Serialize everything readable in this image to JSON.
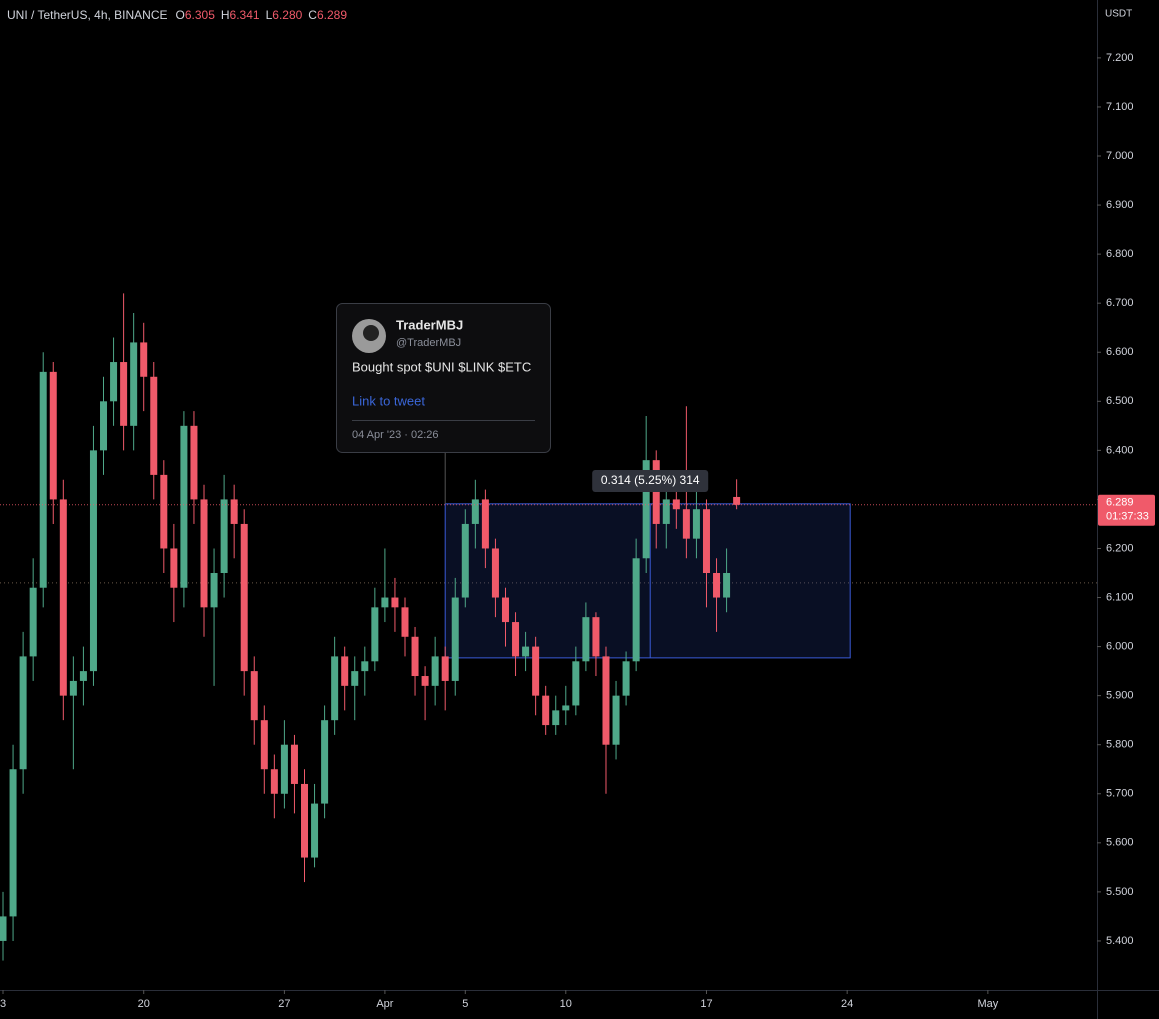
{
  "chart_data": {
    "type": "candlestick",
    "title": "UNI / TetherUS, 4h, BINANCE",
    "ohlc_keys": [
      "O",
      "H",
      "L",
      "C"
    ],
    "ohlc_labels": [
      "6.305",
      "6.341",
      "6.280",
      "6.289"
    ],
    "axis_unit": "USDT",
    "up_color": "#4fa889",
    "down_color": "#f05a6a",
    "xlim": [
      -0.15,
      54.43
    ],
    "xticks": [
      {
        "value": 0,
        "label": "3"
      },
      {
        "value": 7,
        "label": "20"
      },
      {
        "value": 14,
        "label": "27"
      },
      {
        "value": 19,
        "label": "Apr"
      },
      {
        "value": 23,
        "label": "5"
      },
      {
        "value": 28,
        "label": "10"
      },
      {
        "value": 35,
        "label": "17"
      },
      {
        "value": 42,
        "label": "24"
      },
      {
        "value": 49,
        "label": "May"
      }
    ],
    "ylim": [
      5.3,
      7.318
    ],
    "yticks": [
      {
        "value": 5.4,
        "label": "5.400"
      },
      {
        "value": 5.5,
        "label": "5.500"
      },
      {
        "value": 5.6,
        "label": "5.600"
      },
      {
        "value": 5.7,
        "label": "5.700"
      },
      {
        "value": 5.8,
        "label": "5.800"
      },
      {
        "value": 5.9,
        "label": "5.900"
      },
      {
        "value": 6.0,
        "label": "6.000"
      },
      {
        "value": 6.1,
        "label": "6.100"
      },
      {
        "value": 6.2,
        "label": "6.200"
      },
      {
        "value": 6.3,
        "label": "6.300"
      },
      {
        "value": 6.4,
        "label": "6.400"
      },
      {
        "value": 6.5,
        "label": "6.500"
      },
      {
        "value": 6.6,
        "label": "6.600"
      },
      {
        "value": 6.7,
        "label": "6.700"
      },
      {
        "value": 6.8,
        "label": "6.800"
      },
      {
        "value": 6.9,
        "label": "6.900"
      },
      {
        "value": 7.0,
        "label": "7.000"
      },
      {
        "value": 7.1,
        "label": "7.100"
      },
      {
        "value": 7.2,
        "label": "7.200"
      }
    ],
    "x": [
      0,
      0.5,
      1,
      1.5,
      2,
      2.5,
      3,
      3.5,
      4,
      4.5,
      5,
      5.5,
      6,
      6.5,
      7,
      7.5,
      8,
      8.5,
      9,
      9.5,
      10,
      10.5,
      11,
      11.5,
      12,
      12.5,
      13,
      13.5,
      14,
      14.5,
      15,
      15.5,
      16,
      16.5,
      17,
      17.5,
      18,
      18.5,
      19,
      19.5,
      20,
      20.5,
      21,
      21.5,
      22,
      22.5,
      23,
      23.5,
      24,
      24.5,
      25,
      25.5,
      26,
      26.5,
      27,
      27.5,
      28,
      28.5,
      29,
      29.5,
      30,
      30.5,
      31,
      31.5,
      32,
      32.5,
      33,
      33.5,
      34,
      34.5,
      35,
      35.5,
      36,
      36.5
    ],
    "open": [
      5.4,
      5.45,
      5.75,
      5.98,
      6.12,
      6.56,
      6.3,
      5.9,
      5.93,
      5.95,
      6.4,
      6.5,
      6.58,
      6.45,
      6.62,
      6.55,
      6.35,
      6.2,
      6.12,
      6.45,
      6.3,
      6.08,
      6.15,
      6.3,
      6.25,
      5.95,
      5.85,
      5.75,
      5.7,
      5.8,
      5.72,
      5.57,
      5.68,
      5.85,
      5.98,
      5.92,
      5.95,
      5.97,
      6.08,
      6.1,
      6.08,
      6.02,
      5.94,
      5.92,
      5.98,
      5.93,
      6.1,
      6.25,
      6.3,
      6.2,
      6.1,
      6.05,
      5.98,
      6.0,
      5.9,
      5.84,
      5.87,
      5.88,
      5.97,
      6.06,
      5.98,
      5.8,
      5.9,
      5.97,
      6.18,
      6.38,
      6.25,
      6.3,
      6.28,
      6.22,
      6.28,
      6.15,
      6.1,
      6.305
    ],
    "high": [
      5.5,
      5.8,
      6.03,
      6.18,
      6.6,
      6.58,
      6.34,
      5.98,
      6.0,
      6.45,
      6.55,
      6.63,
      6.72,
      6.68,
      6.66,
      6.58,
      6.38,
      6.25,
      6.48,
      6.48,
      6.33,
      6.2,
      6.35,
      6.33,
      6.28,
      5.98,
      5.88,
      5.78,
      5.85,
      5.82,
      5.75,
      5.72,
      5.88,
      6.02,
      6.0,
      5.98,
      6.0,
      6.12,
      6.2,
      6.14,
      6.1,
      6.04,
      5.96,
      6.02,
      6.0,
      6.14,
      6.28,
      6.34,
      6.32,
      6.22,
      6.12,
      6.07,
      6.03,
      6.02,
      5.92,
      5.9,
      5.92,
      6.0,
      6.09,
      6.07,
      6.0,
      5.93,
      5.99,
      6.22,
      6.47,
      6.4,
      6.33,
      6.35,
      6.49,
      6.32,
      6.3,
      6.18,
      6.2,
      6.341
    ],
    "low": [
      5.36,
      5.4,
      5.7,
      5.93,
      6.08,
      6.25,
      5.85,
      5.75,
      5.88,
      5.92,
      6.35,
      6.45,
      6.4,
      6.4,
      6.48,
      6.3,
      6.15,
      6.05,
      6.08,
      6.25,
      6.02,
      5.92,
      6.1,
      6.18,
      5.9,
      5.8,
      5.7,
      5.65,
      5.67,
      5.66,
      5.52,
      5.55,
      5.65,
      5.82,
      5.87,
      5.85,
      5.9,
      5.95,
      6.05,
      6.03,
      5.98,
      5.9,
      5.85,
      5.88,
      5.87,
      5.9,
      6.08,
      6.2,
      6.16,
      6.06,
      6.0,
      5.94,
      5.95,
      5.86,
      5.82,
      5.82,
      5.84,
      5.86,
      5.95,
      5.94,
      5.7,
      5.77,
      5.88,
      5.95,
      6.15,
      6.2,
      6.2,
      6.24,
      6.18,
      6.18,
      6.08,
      6.03,
      6.07,
      6.28
    ],
    "close": [
      5.45,
      5.75,
      5.98,
      6.12,
      6.56,
      6.3,
      5.9,
      5.93,
      5.95,
      6.4,
      6.5,
      6.58,
      6.45,
      6.62,
      6.55,
      6.35,
      6.2,
      6.12,
      6.45,
      6.3,
      6.08,
      6.15,
      6.3,
      6.25,
      5.95,
      5.85,
      5.75,
      5.7,
      5.8,
      5.72,
      5.57,
      5.68,
      5.85,
      5.98,
      5.92,
      5.95,
      5.97,
      6.08,
      6.1,
      6.08,
      6.02,
      5.94,
      5.92,
      5.98,
      5.93,
      6.1,
      6.25,
      6.3,
      6.2,
      6.1,
      6.05,
      5.98,
      6.0,
      5.9,
      5.84,
      5.87,
      5.88,
      5.97,
      6.06,
      5.98,
      5.8,
      5.9,
      5.97,
      6.18,
      6.38,
      6.25,
      6.3,
      6.28,
      6.22,
      6.28,
      6.15,
      6.1,
      6.15,
      6.289
    ],
    "countdown": "01:37:33",
    "ref_line": 6.13,
    "measure": {
      "top": 6.291,
      "bottom": 5.977,
      "x_start": 22.0,
      "x_end": 42.15,
      "x_mid": 32.2,
      "label": "0.314 (5.25%) 314"
    },
    "tweet": {
      "x": 22.0,
      "author": "TraderMBJ",
      "handle": "@TraderMBJ",
      "text": "Bought spot $UNI $LINK $ETC",
      "link": "Link to tweet",
      "date": "04 Apr '23 · 02:26"
    }
  }
}
